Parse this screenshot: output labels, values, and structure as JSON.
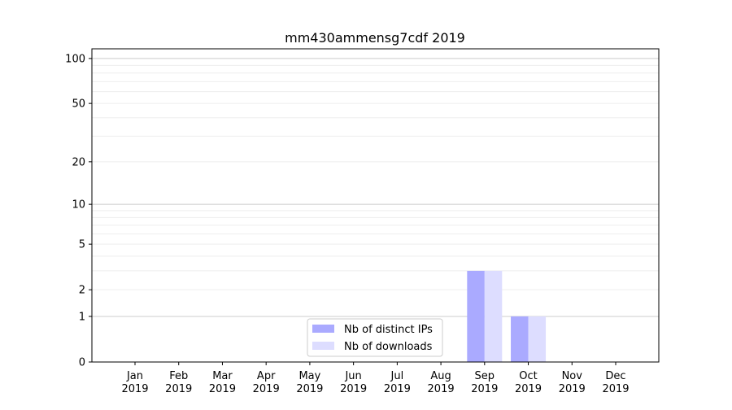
{
  "chart_data": {
    "type": "bar",
    "title": "mm430ammensg7cdf 2019",
    "xlabel": "",
    "ylabel": "",
    "yscale": "log(1+y)",
    "ylim": [
      0,
      116
    ],
    "yticks": [
      0,
      1,
      2,
      5,
      10,
      20,
      50,
      100
    ],
    "grid": true,
    "legend_position": "bottom-center",
    "categories": [
      "Jan\n2019",
      "Feb\n2019",
      "Mar\n2019",
      "Apr\n2019",
      "May\n2019",
      "Jun\n2019",
      "Jul\n2019",
      "Aug\n2019",
      "Sep\n2019",
      "Oct\n2019",
      "Nov\n2019",
      "Dec\n2019"
    ],
    "series": [
      {
        "name": "Nb of distinct IPs",
        "color": "#aaaaff",
        "values": [
          0,
          0,
          0,
          0,
          0,
          0,
          0,
          0,
          3,
          1,
          0,
          0
        ]
      },
      {
        "name": "Nb of downloads",
        "color": "#ddddff",
        "values": [
          0,
          0,
          0,
          0,
          0,
          0,
          0,
          0,
          3,
          1,
          0,
          0
        ]
      }
    ]
  }
}
